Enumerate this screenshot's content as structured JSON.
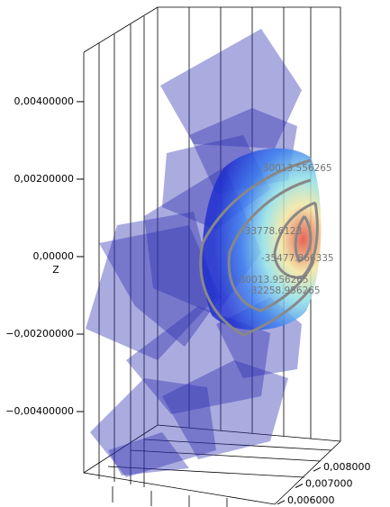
{
  "chart_data": {
    "type": "surface3d",
    "zlabel": "Z",
    "zlim": [
      -0.00558,
      0.00523
    ],
    "zticks": [
      {
        "value": 0.004,
        "label": "0,00400000"
      },
      {
        "value": 0.002,
        "label": "0,00200000"
      },
      {
        "value": 0,
        "label": "0,00000"
      },
      {
        "value": -0.002,
        "label": "−0,00200000"
      },
      {
        "value": -0.004,
        "label": "−0,00400000"
      }
    ],
    "ylim": [
      0.0055,
      0.0085
    ],
    "yticks": [
      {
        "value": 0.006,
        "label": "0,006000"
      },
      {
        "value": 0.007,
        "label": "0,007000"
      },
      {
        "value": 0.008,
        "label": "0,008000"
      }
    ],
    "contour_labels": [
      "-30013.556265",
      "-33778.6123",
      "-35477.866335",
      "-30013.956265",
      "-32258.956265"
    ]
  }
}
